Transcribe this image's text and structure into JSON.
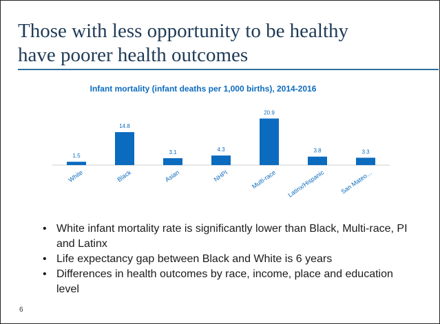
{
  "slide": {
    "title_line1": "Those with less opportunity to be healthy",
    "title_line2": "have poorer health outcomes",
    "number": "6"
  },
  "bullets": [
    "White infant mortality rate is  significantly lower than Black, Multi-race, PI and Latinx",
    "Life expectancy gap between Black and White is 6 years",
    "Differences in health outcomes by race, income, place and education level"
  ],
  "chart_data": {
    "type": "bar",
    "title": "Infant mortality (infant deaths per 1,000 births), 2014-2016",
    "categories": [
      "White",
      "Black",
      "Asian",
      "NHPI",
      "Multi-race",
      "Latinx/Hispanic",
      "San Mateo…"
    ],
    "values": [
      1.5,
      14.8,
      3.1,
      4.3,
      20.9,
      3.8,
      3.3
    ],
    "value_labels": [
      "1.5",
      "14.8",
      "3.1",
      "4.3",
      "20.9",
      "3.8",
      "3.3"
    ],
    "ylim": [
      0,
      21
    ],
    "xlabel": "",
    "ylabel": "",
    "grid": false,
    "legend": "none",
    "bar_color": "#0b6bbf",
    "label_color": "#0b6bbf"
  }
}
